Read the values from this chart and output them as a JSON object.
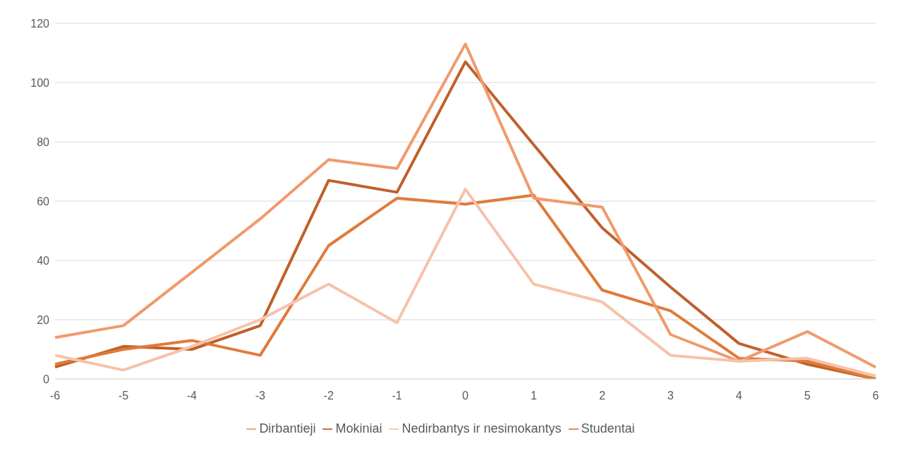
{
  "chart_data": {
    "type": "line",
    "categories": [
      "-6",
      "-5",
      "-4",
      "-3",
      "-2",
      "-1",
      "0",
      "1",
      "2",
      "3",
      "4",
      "5",
      "6"
    ],
    "series": [
      {
        "name": "Mokiniai",
        "color": "#c0602a",
        "values": [
          4,
          11,
          10,
          18,
          67,
          63,
          107,
          79,
          51,
          31,
          12,
          5,
          0
        ]
      },
      {
        "name": "Studentai",
        "color": "#e07a38",
        "values": [
          5,
          10,
          13,
          8,
          45,
          61,
          59,
          62,
          30,
          23,
          7,
          6,
          0
        ]
      },
      {
        "name": "Dirbantieji",
        "color": "#f09a6c",
        "values": [
          14,
          18,
          36,
          54,
          74,
          71,
          113,
          61,
          58,
          15,
          6,
          16,
          4
        ]
      },
      {
        "name": "Nedirbantys ir nesimokantys",
        "color": "#f6c2aa",
        "values": [
          8,
          3,
          11,
          20,
          32,
          19,
          64,
          32,
          26,
          8,
          6,
          7,
          1
        ]
      }
    ],
    "ylim": [
      0,
      120
    ],
    "yticks": [
      0,
      20,
      40,
      60,
      80,
      100,
      120
    ],
    "grid": "y",
    "legend": "bottom",
    "marker": "none",
    "line_style": "solid"
  }
}
